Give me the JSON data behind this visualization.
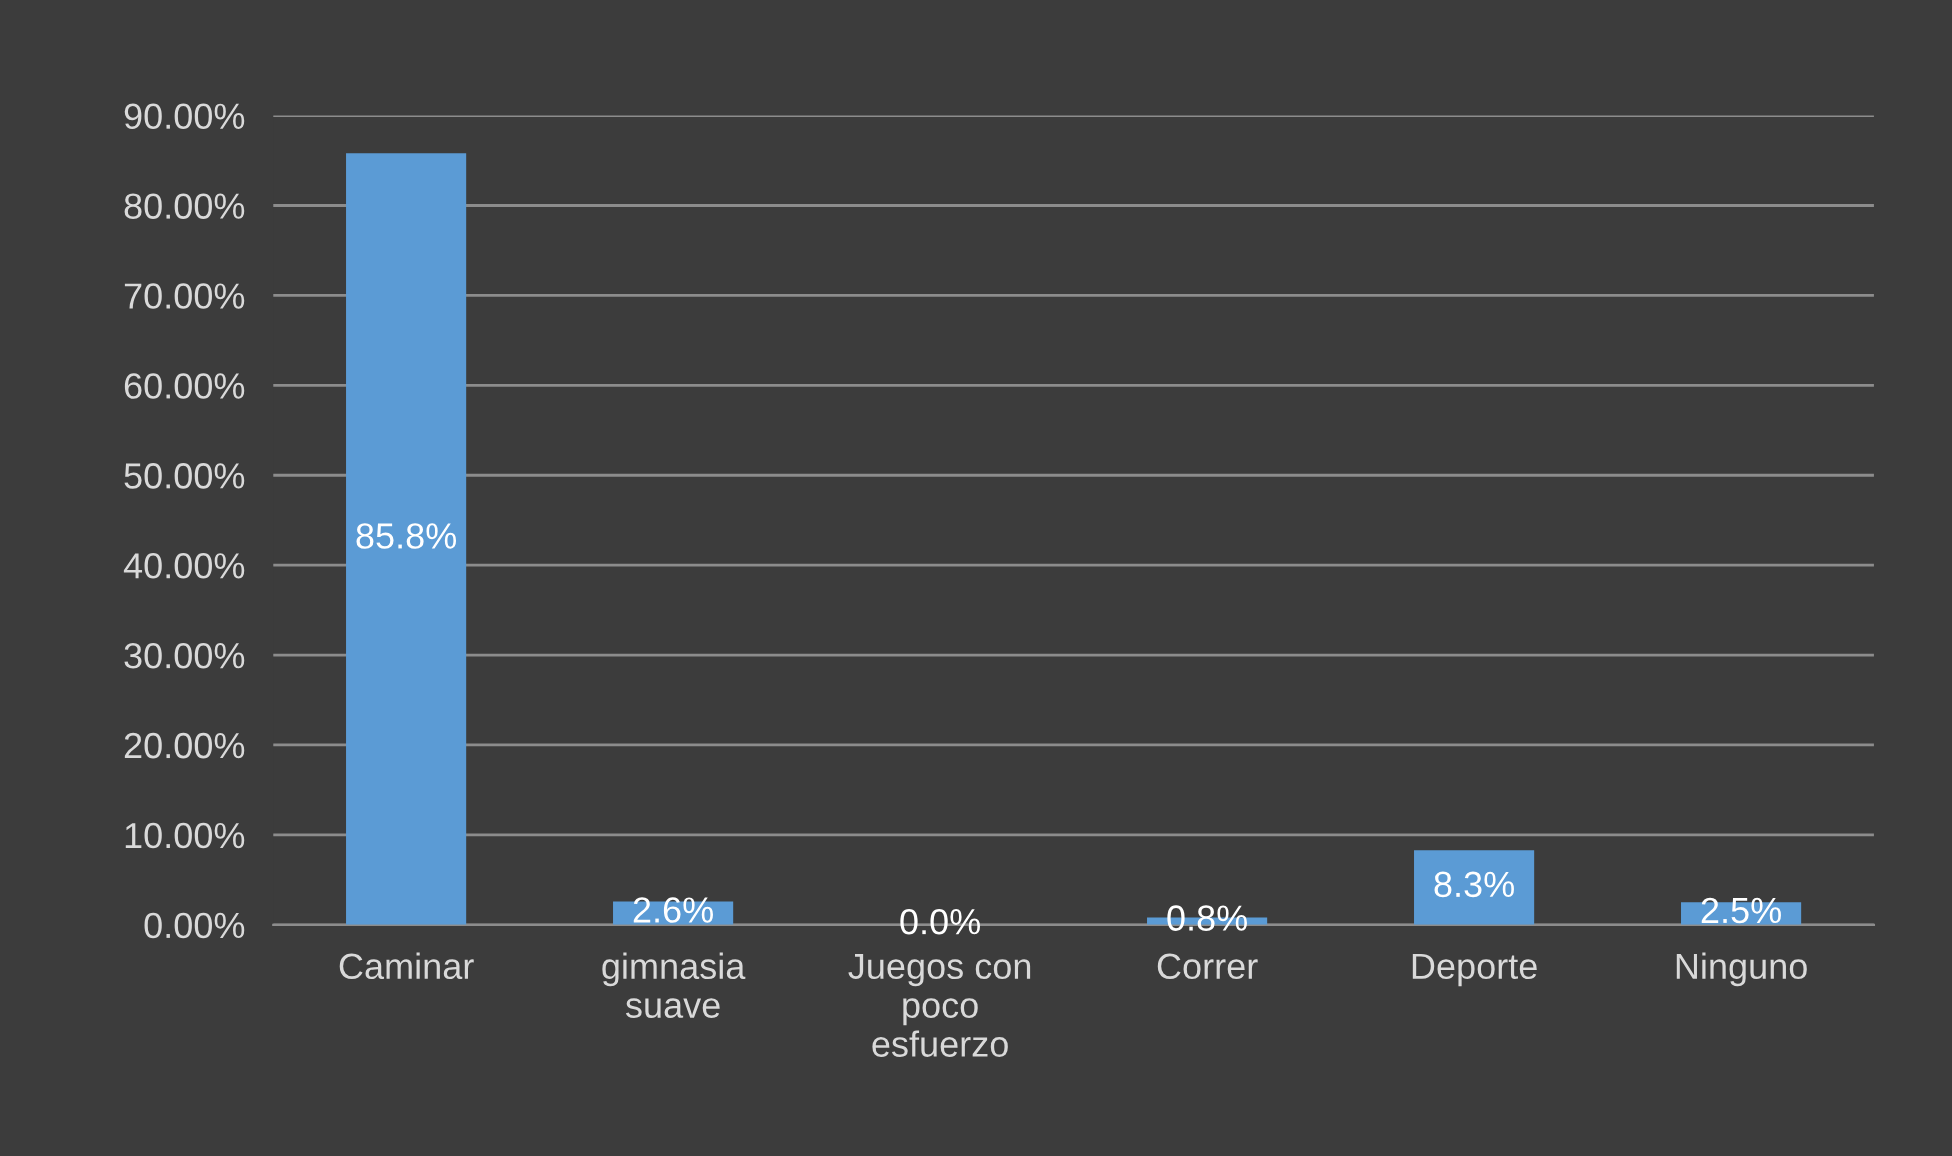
{
  "chart_data": {
    "type": "bar",
    "categories": [
      "Caminar",
      "gimnasia\nsuave",
      "Juegos con\npoco\nesfuerzo",
      "Correr",
      "Deporte",
      "Ninguno"
    ],
    "values": [
      85.8,
      2.6,
      0.0,
      0.8,
      8.3,
      2.5
    ],
    "value_labels": [
      "85.8%",
      "2.6%",
      "0.0%",
      "0.8%",
      "8.3%",
      "2.5%"
    ],
    "color": "#5b9bd5",
    "ylim": [
      0,
      90
    ],
    "yticks": [
      {
        "value": 0,
        "label": "0.00%"
      },
      {
        "value": 10,
        "label": "10.00%"
      },
      {
        "value": 20,
        "label": "20.00%"
      },
      {
        "value": 30,
        "label": "30.00%"
      },
      {
        "value": 40,
        "label": "40.00%"
      },
      {
        "value": 50,
        "label": "50.00%"
      },
      {
        "value": 60,
        "label": "60.00%"
      },
      {
        "value": 70,
        "label": "70.00%"
      },
      {
        "value": 80,
        "label": "80.00%"
      },
      {
        "value": 90,
        "label": "90.00%"
      }
    ],
    "grid": "y",
    "legend": false
  }
}
